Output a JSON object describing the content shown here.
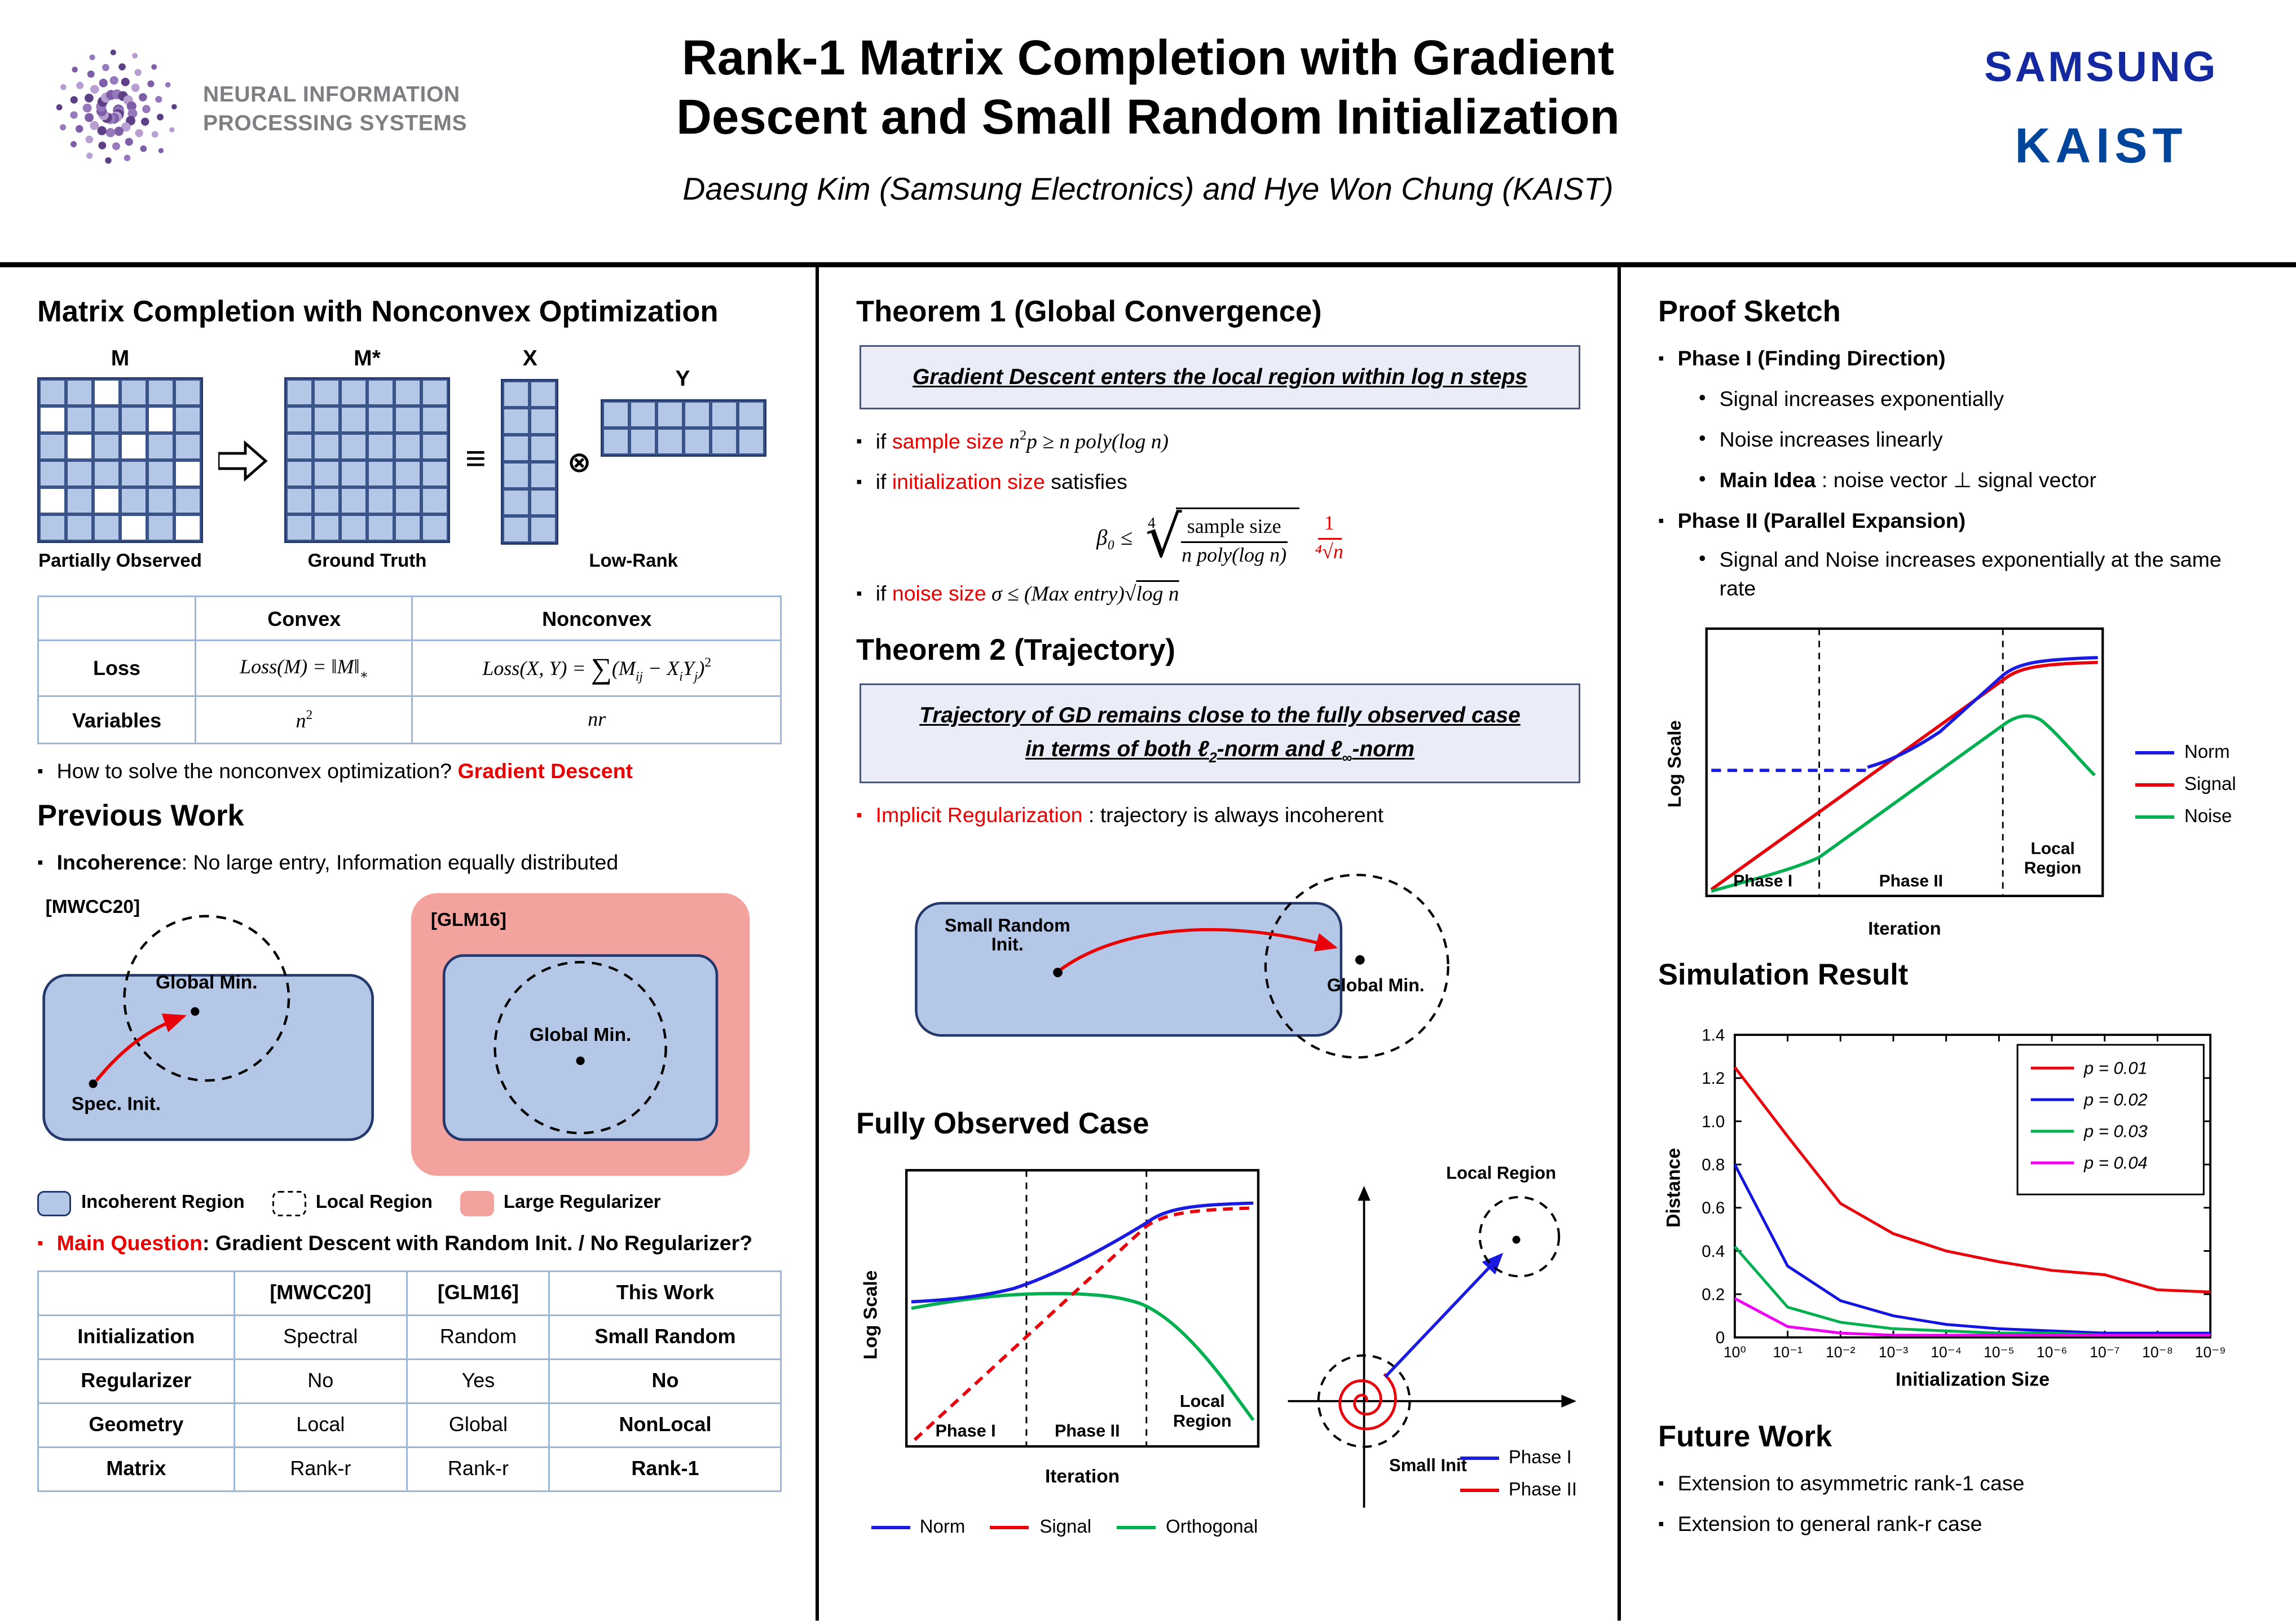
{
  "colors": {
    "accent_red": "#e80000",
    "light_blue": "#b4c7e7",
    "dark_navy": "#24386b",
    "pink": "#f4a29d",
    "samsung_blue": "#1428a0",
    "kaist_blue": "#00459c",
    "box_bg": "#eaedf8",
    "table_line": "#9db6d9"
  },
  "header": {
    "logo_text": "NEURAL INFORMATION\nPROCESSING SYSTEMS",
    "title": "Rank-1 Matrix Completion with Gradient\nDescent and Small Random Initialization",
    "authors": "Daesung Kim (Samsung Electronics) and Hye Won Chung (KAIST)",
    "samsung": "SAMSUNG",
    "kaist": "KAIST"
  },
  "col1": {
    "heading1": "Matrix Completion with Nonconvex Optimization",
    "diagram": {
      "m_label": "M",
      "mstar_label": "M*",
      "x_label": "X",
      "y_label": "Y",
      "equiv": "≡",
      "otimes": "⊗",
      "caption_m": "Partially Observed",
      "caption_mstar": "Ground Truth",
      "caption_xy": "Low-Rank",
      "m_pattern": [
        [
          1,
          1,
          0,
          1,
          1,
          1
        ],
        [
          0,
          1,
          1,
          1,
          0,
          1
        ],
        [
          1,
          0,
          1,
          0,
          1,
          1
        ],
        [
          1,
          1,
          1,
          1,
          1,
          0
        ],
        [
          0,
          1,
          0,
          1,
          1,
          1
        ],
        [
          1,
          1,
          1,
          0,
          1,
          0
        ]
      ],
      "mstar_rows": 6,
      "mstar_cols": 6,
      "x_rows": 6,
      "x_cols": 2,
      "y_rows": 2,
      "y_cols": 6
    },
    "loss_table": {
      "col_headers": [
        "Convex",
        "Nonconvex"
      ],
      "rows": [
        {
          "label": "Loss",
          "convex_rich": [
            {
              "t": "Loss(M) = ‖M‖",
              "i": 1
            },
            {
              "t": "∗",
              "sub": 1
            }
          ],
          "nonconvex_rich": [
            {
              "t": "Loss(X, Y) = ",
              "i": 1
            },
            {
              "t": "∑",
              "big": 1
            },
            {
              "t": "(M",
              "i": 1
            },
            {
              "t": "ij",
              "sub": 1,
              "i": 1
            },
            {
              "t": " − X",
              "i": 1
            },
            {
              "t": "i",
              "sub": 1,
              "i": 1
            },
            {
              "t": "Y",
              "i": 1
            },
            {
              "t": "j",
              "sub": 1,
              "i": 1
            },
            {
              "t": ")",
              "i": 1
            },
            {
              "t": "2",
              "sup": 1
            }
          ]
        },
        {
          "label": "Variables",
          "convex_rich": [
            {
              "t": "n",
              "i": 1
            },
            {
              "t": "2",
              "sup": 1
            }
          ],
          "nonconvex_rich": [
            {
              "t": "nr",
              "i": 1
            }
          ]
        }
      ]
    },
    "solve_bullet": {
      "pre": "How to solve the nonconvex optimization? ",
      "red": "Gradient Descent"
    },
    "heading2": "Previous Work",
    "incoherence_bullet": {
      "bold": "Incoherence",
      "rest": ": No large entry, Information equally distributed"
    },
    "prev_diagrams": {
      "mwcc_label": "[MWCC20]",
      "glm_label": "[GLM16]",
      "global_min": "Global Min.",
      "spec_init": "Spec. Init.",
      "legend": [
        {
          "name": "Incoherent Region"
        },
        {
          "name": "Local Region"
        },
        {
          "name": "Large Regularizer"
        }
      ]
    },
    "main_question": {
      "red": "Main Question",
      "rest": ": Gradient Descent with Random Init. / No Regularizer?"
    },
    "compare_table": {
      "col_headers": [
        "[MWCC20]",
        "[GLM16]",
        "This Work"
      ],
      "rows": [
        {
          "label": "Initialization",
          "values": [
            "Spectral",
            "Random",
            "Small Random"
          ]
        },
        {
          "label": "Regularizer",
          "values": [
            "No",
            "Yes",
            "No"
          ]
        },
        {
          "label": "Geometry",
          "values": [
            "Local",
            "Global",
            "NonLocal"
          ]
        },
        {
          "label": "Matrix",
          "values": [
            "Rank-r",
            "Rank-r",
            "Rank-1"
          ]
        }
      ]
    }
  },
  "col2": {
    "t1_heading": "Theorem 1 (Global Convergence)",
    "t1_box": "Gradient Descent enters the local region within log n steps",
    "t1_b1": {
      "pre": "if ",
      "red": "sample size",
      "post_rich": [
        {
          "t": " n",
          "i": 1
        },
        {
          "t": "2",
          "sup": 1
        },
        {
          "t": "p ≥ n poly(log n)",
          "i": 1
        }
      ]
    },
    "t1_b2": {
      "pre": "if ",
      "red": "initialization size",
      "post": " satisfies"
    },
    "t1_formula": {
      "lhs": "β₀ ≤",
      "root_index": "4",
      "num": "sample size",
      "den": "n poly(log n)",
      "red_num": "1",
      "red_den": "⁴√n"
    },
    "t1_b3": {
      "pre": "if ",
      "red": "noise size",
      "post_rich": [
        {
          "t": " σ ≤ (Max entry)",
          "i": 1
        },
        {
          "t": "√"
        },
        {
          "t": "log n",
          "i": 1,
          "ol": 1
        }
      ]
    },
    "t2_heading": "Theorem 2 (Trajectory)",
    "t2_box1": "Trajectory of GD remains close to the fully observed case",
    "t2_box2_rich": [
      {
        "t": "in terms of both "
      },
      {
        "t": "ℓ"
      },
      {
        "t": "2",
        "sub": 1
      },
      {
        "t": "-norm and "
      },
      {
        "t": "ℓ"
      },
      {
        "t": "∞",
        "sub": 1
      },
      {
        "t": "-norm"
      }
    ],
    "t2_b1": {
      "red": "Implicit Regularization",
      "rest": " : trajectory is always incoherent"
    },
    "traj_diagram": {
      "small_init": "Small Random\nInit.",
      "global_min": "Global Min."
    },
    "foc_heading": "Fully Observed Case",
    "foc_chart": {
      "ylabel": "Log Scale",
      "xlabel": "Iteration",
      "phases": [
        "Phase I",
        "Phase II",
        "Local\nRegion"
      ],
      "legend": [
        {
          "name": "Norm",
          "color": "#1a1ae0"
        },
        {
          "name": "Signal",
          "color": "#e8000b"
        },
        {
          "name": "Orthogonal",
          "color": "#00b050"
        }
      ]
    },
    "spiral_diagram": {
      "local_region": "Local Region",
      "small_init": "Small Init",
      "legend": [
        {
          "name": "Phase I",
          "color": "#1a1ae0"
        },
        {
          "name": "Phase II",
          "color": "#e8000b"
        }
      ]
    }
  },
  "col3": {
    "heading1": "Proof Sketch",
    "phase1": {
      "title": "Phase I (Finding Direction)",
      "sub1": "Signal increases exponentially",
      "sub2": "Noise increases linearly",
      "main_idea_bold": "Main Idea",
      "main_idea_rest": " : noise vector ⊥ signal vector"
    },
    "phase2": {
      "title": "Phase II (Parallel Expansion)",
      "sub1": "Signal and Noise increases exponentially at the same rate"
    },
    "phase_chart": {
      "ylabel": "Log Scale",
      "xlabel": "Iteration",
      "phases": [
        "Phase I",
        "Phase II",
        "Local\nRegion"
      ],
      "legend": [
        {
          "name": "Norm",
          "color": "#1a1ae0"
        },
        {
          "name": "Signal",
          "color": "#e8000b"
        },
        {
          "name": "Noise",
          "color": "#00b050"
        }
      ]
    },
    "sim_heading": "Simulation Result",
    "future_heading": "Future Work",
    "future_items": [
      "Extension to asymmetric rank-1 case",
      "Extension to general rank-r case"
    ]
  },
  "chart_data": [
    {
      "type": "line",
      "title": "Simulation Result",
      "xlabel": "Initialization Size",
      "ylabel": "Distance",
      "x_tick_labels": [
        "10⁰",
        "10⁻¹",
        "10⁻²",
        "10⁻³",
        "10⁻⁴",
        "10⁻⁵",
        "10⁻⁶",
        "10⁻⁷",
        "10⁻⁸",
        "10⁻⁹"
      ],
      "ylim": [
        0,
        1.4
      ],
      "y_ticks": [
        0,
        0.2,
        0.4,
        0.6,
        0.8,
        1.0,
        1.2,
        1.4
      ],
      "grid": false,
      "legend_position": "top right",
      "series": [
        {
          "name": "p = 0.01",
          "color": "#e8000b",
          "values": [
            1.25,
            0.93,
            0.62,
            0.48,
            0.4,
            0.35,
            0.31,
            0.29,
            0.22,
            0.21
          ]
        },
        {
          "name": "p = 0.02",
          "color": "#1414e0",
          "values": [
            0.8,
            0.33,
            0.17,
            0.1,
            0.06,
            0.04,
            0.03,
            0.02,
            0.02,
            0.02
          ]
        },
        {
          "name": "p = 0.03",
          "color": "#00b050",
          "values": [
            0.42,
            0.14,
            0.07,
            0.04,
            0.03,
            0.02,
            0.02,
            0.01,
            0.01,
            0.01
          ]
        },
        {
          "name": "p = 0.04",
          "color": "#f000f0",
          "values": [
            0.18,
            0.05,
            0.02,
            0.01,
            0.01,
            0.01,
            0.01,
            0.01,
            0.01,
            0.01
          ]
        }
      ]
    }
  ]
}
